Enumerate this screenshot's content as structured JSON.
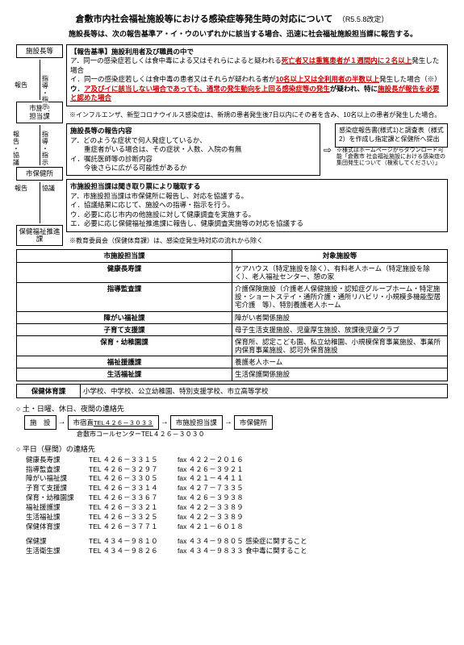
{
  "title": "倉敷市内社会福祉施設等における感染症等発生時の対応について",
  "revision": "（R5.5.8改定）",
  "intro": "施設長等は、次の報告基準ア・イ・ウのいずれかに該当する場合、迅速に社会福祉施設担当課に報告する。",
  "leftBoxes": {
    "b1": "施設長等",
    "b2": "市施設\n担当課",
    "b3": "市保健所",
    "b4": "保健福祉推進課"
  },
  "leftLabels": {
    "l1a": "指導・指示",
    "l1b": "報告",
    "l2a": "報告・協議",
    "l2b": "指導・指示",
    "l3a": "報告",
    "l3b": "協議"
  },
  "criteria": {
    "header": "【報告基準】施設利用者及び職員の中で",
    "a_pre": "ア．同一の感染症若しくは食中毒による又はそれらによると疑われる",
    "a_red": "死亡者又は重篤患者が１週間内に２名以上",
    "a_post": "発生した場合",
    "i_pre": "イ．同一の感染症若しくは食中毒の患者又はそれらが疑われる者が",
    "i_red": "10名以上又は全利用者の半数以上",
    "i_post": "発生した場合（※）",
    "u_pre": "ウ．",
    "u_red1": "ア及びイに該当しない場合であっても、通常の発生動向を上回る感染症等の発生",
    "u_mid": "が疑われ、特に",
    "u_red2": "施設長が報告を必要と認めた場合"
  },
  "criteriaNote": "※インフルエンザ、新型コロナウイルス感染症は、新規の患者発生後7日以内にその者を含み、10名以上の患者が発生した場合。",
  "reportContent": {
    "header": "施設長等の報告内容",
    "a": "ア．どのような症状で何人発症しているか、",
    "b": "　　重症者がいる場合は、その症状・人数、入院の有無",
    "c": "イ．嘱託医師等の診断内容",
    "d": "　　今後さらに広がる可能性があるか"
  },
  "submit": {
    "line1": "感染症報告書(様式1)と調査表（様式2）を作成し指定課と保健所へ提出",
    "note": "※様式はホームページからダウンロード可能「倉敷市 社会福祉施設における感染症の集団発生について（検索してください）」"
  },
  "hearing": {
    "header": "市施設担当課は聞き取り票により聴取する",
    "a": "ア．市施設担当課は市保健所に報告し、対応を協議する。",
    "i": "イ．協議結果に応じて、施設への指導・指示を行う。",
    "u": "ウ．必要に応じ市内の他施設に対して健康調査を実施する。",
    "e": "エ．必要に応じ保健福祉推進課に報告し、健康調査実施等の対応を協議する"
  },
  "hearingNote": "※教育委員会（保健体育課）は、感染症発生時対応の流れから除く",
  "table1": {
    "h1": "市施設担当課",
    "h2": "対象施設等",
    "rows": [
      [
        "健康長寿課",
        "ケアハウス（特定施設を除く）、有料老人ホーム（特定施設を除く）、老人福祉センター、憩の家"
      ],
      [
        "指導監査課",
        "介護保険施設（介護老人保健施設・認知症グループホーム・特定施設・ショートステイ・通所介護・通所リハビリ・小規模多機能型居宅介護　等）、特別養護老人ホーム"
      ],
      [
        "障がい福祉課",
        "障がい者関係施設"
      ],
      [
        "子育て支援課",
        "母子生活支援施設、児童厚生施設、放課後児童クラブ"
      ],
      [
        "保育・幼稚園課",
        "保育所、認定こども園、私立幼稚園、小規模保育事業施設、事業所内保育事業施設、認可外保育施設"
      ],
      [
        "福祉援護課",
        "養護老人ホーム"
      ],
      [
        "生活福祉課",
        "生活保護関係施設"
      ]
    ]
  },
  "table2": {
    "h": "保健体育課",
    "v": "小学校、中学校、公立幼稚園、特別支援学校、市立高等学校"
  },
  "weekend": {
    "header": "○ 土・日曜、休日、夜間の連絡先",
    "b1": "施　設",
    "b2": "市宿直",
    "tel": "TEL４２６－３０３３",
    "b3": "市施設担当課",
    "b4": "市保健所",
    "sub": "倉敷市コールセンターTEL４２６－３０３０"
  },
  "weekday": {
    "header": "○ 平日（昼間）の連絡先",
    "rows": [
      [
        "健康長寿課",
        "TEL ４２６－３３１５",
        "fax ４２２－２０１６"
      ],
      [
        "指導監査課",
        "TEL ４２６－３２９７",
        "fax ４２６－３９２１"
      ],
      [
        "障がい福祉課",
        "TEL ４２６－３３０５",
        "fax ４２１－４４１１"
      ],
      [
        "子育て支援課",
        "TEL ４２６－３３１４",
        "fax ４２７－７３３５"
      ],
      [
        "保育・幼稚園課",
        "TEL ４２６－３３６７",
        "fax ４２６－３９３８"
      ],
      [
        "福祉援護課",
        "TEL ４２６－３３２１",
        "fax ４２２－３３８９"
      ],
      [
        "生活福祉課",
        "TEL ４２６－３３２５",
        "fax ４２２－３３８９"
      ],
      [
        "保健体育課",
        "TEL ４２６－３７７１",
        "fax ４２１－６０１８"
      ]
    ],
    "rows2": [
      [
        "保健課",
        "TEL ４３４－９８１０",
        "fax ４３４－９８０５ 感染症に関すること"
      ],
      [
        "生活衛生課",
        "TEL ４３４－９８２６",
        "fax ４３４－９８３３ 食中毒に関すること"
      ]
    ]
  }
}
